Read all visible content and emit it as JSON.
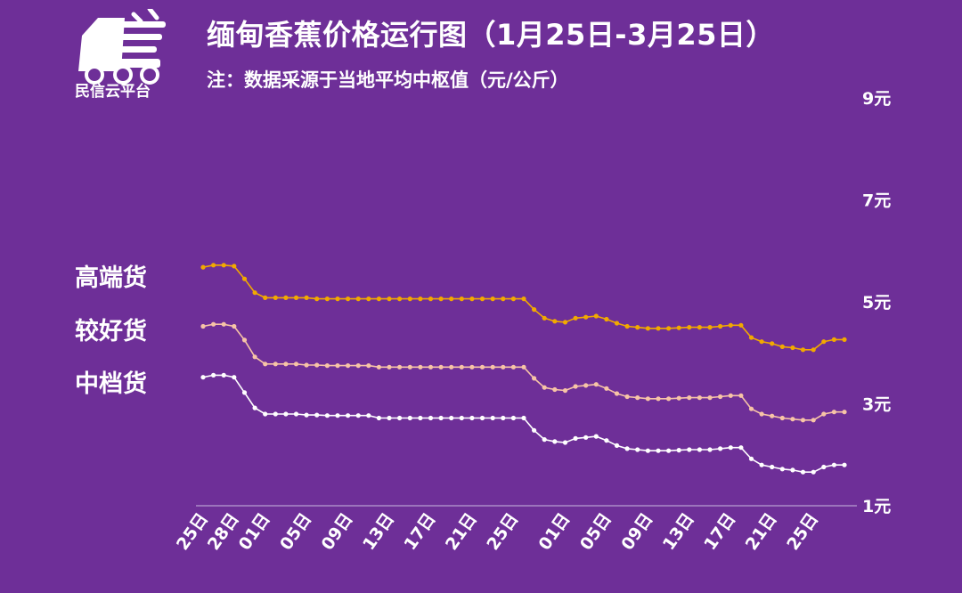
{
  "logo": {
    "text": "民信云平台",
    "icon": "truck-icon"
  },
  "title": "缅甸香蕉价格运行图（1月25日-3月25日）",
  "subtitle": "注：数据采源于当地平均中枢值（元/公斤）",
  "colors": {
    "background": "#6e2f98",
    "high": "#f2a900",
    "mid": "#f7c4a6",
    "low": "#ffffff",
    "axis": "#c9b8df"
  },
  "chart_data": {
    "type": "line",
    "ylim": [
      1,
      9
    ],
    "yticks": [
      1,
      3,
      5,
      7,
      9
    ],
    "ytick_labels": [
      "1元",
      "3元",
      "5元",
      "7元",
      "9元"
    ],
    "xtick_labels": [
      "25日",
      "28日",
      "01日",
      "05日",
      "09日",
      "13日",
      "17日",
      "21日",
      "25日",
      "01日",
      "05日",
      "09日",
      "13日",
      "17日",
      "21日",
      "25日"
    ],
    "xtick_index": [
      0,
      3,
      6,
      10,
      14,
      18,
      22,
      26,
      30,
      35,
      39,
      43,
      47,
      51,
      55,
      59
    ],
    "series": [
      {
        "name": "高端货",
        "values": [
          5.68,
          5.72,
          5.72,
          5.7,
          5.45,
          5.18,
          5.08,
          5.08,
          5.08,
          5.08,
          5.08,
          5.06,
          5.06,
          5.06,
          5.06,
          5.06,
          5.06,
          5.06,
          5.06,
          5.06,
          5.06,
          5.06,
          5.06,
          5.06,
          5.06,
          5.06,
          5.06,
          5.06,
          5.06,
          5.06,
          5.06,
          5.06,
          4.85,
          4.68,
          4.62,
          4.6,
          4.68,
          4.7,
          4.72,
          4.66,
          4.58,
          4.52,
          4.5,
          4.48,
          4.48,
          4.48,
          4.49,
          4.5,
          4.5,
          4.5,
          4.52,
          4.54,
          4.54,
          4.3,
          4.22,
          4.18,
          4.12,
          4.1,
          4.06,
          4.06,
          4.22,
          4.26,
          4.26
        ]
      },
      {
        "name": "较好货",
        "values": [
          4.52,
          4.56,
          4.56,
          4.52,
          4.25,
          3.92,
          3.78,
          3.78,
          3.78,
          3.78,
          3.76,
          3.76,
          3.75,
          3.75,
          3.75,
          3.75,
          3.75,
          3.72,
          3.72,
          3.72,
          3.72,
          3.72,
          3.72,
          3.72,
          3.72,
          3.72,
          3.72,
          3.72,
          3.72,
          3.72,
          3.72,
          3.72,
          3.5,
          3.32,
          3.28,
          3.26,
          3.34,
          3.36,
          3.38,
          3.3,
          3.2,
          3.14,
          3.12,
          3.1,
          3.1,
          3.1,
          3.11,
          3.12,
          3.12,
          3.12,
          3.14,
          3.16,
          3.16,
          2.9,
          2.8,
          2.76,
          2.72,
          2.7,
          2.68,
          2.68,
          2.8,
          2.84,
          2.84
        ]
      },
      {
        "name": "中档货",
        "values": [
          3.52,
          3.56,
          3.56,
          3.52,
          3.22,
          2.92,
          2.8,
          2.8,
          2.8,
          2.8,
          2.78,
          2.78,
          2.77,
          2.77,
          2.77,
          2.77,
          2.77,
          2.72,
          2.72,
          2.72,
          2.72,
          2.72,
          2.72,
          2.72,
          2.72,
          2.72,
          2.72,
          2.72,
          2.72,
          2.72,
          2.72,
          2.72,
          2.48,
          2.3,
          2.26,
          2.24,
          2.32,
          2.34,
          2.36,
          2.28,
          2.18,
          2.12,
          2.1,
          2.08,
          2.08,
          2.08,
          2.09,
          2.1,
          2.1,
          2.1,
          2.12,
          2.14,
          2.14,
          1.92,
          1.8,
          1.76,
          1.72,
          1.7,
          1.66,
          1.66,
          1.76,
          1.8,
          1.8
        ]
      }
    ]
  }
}
